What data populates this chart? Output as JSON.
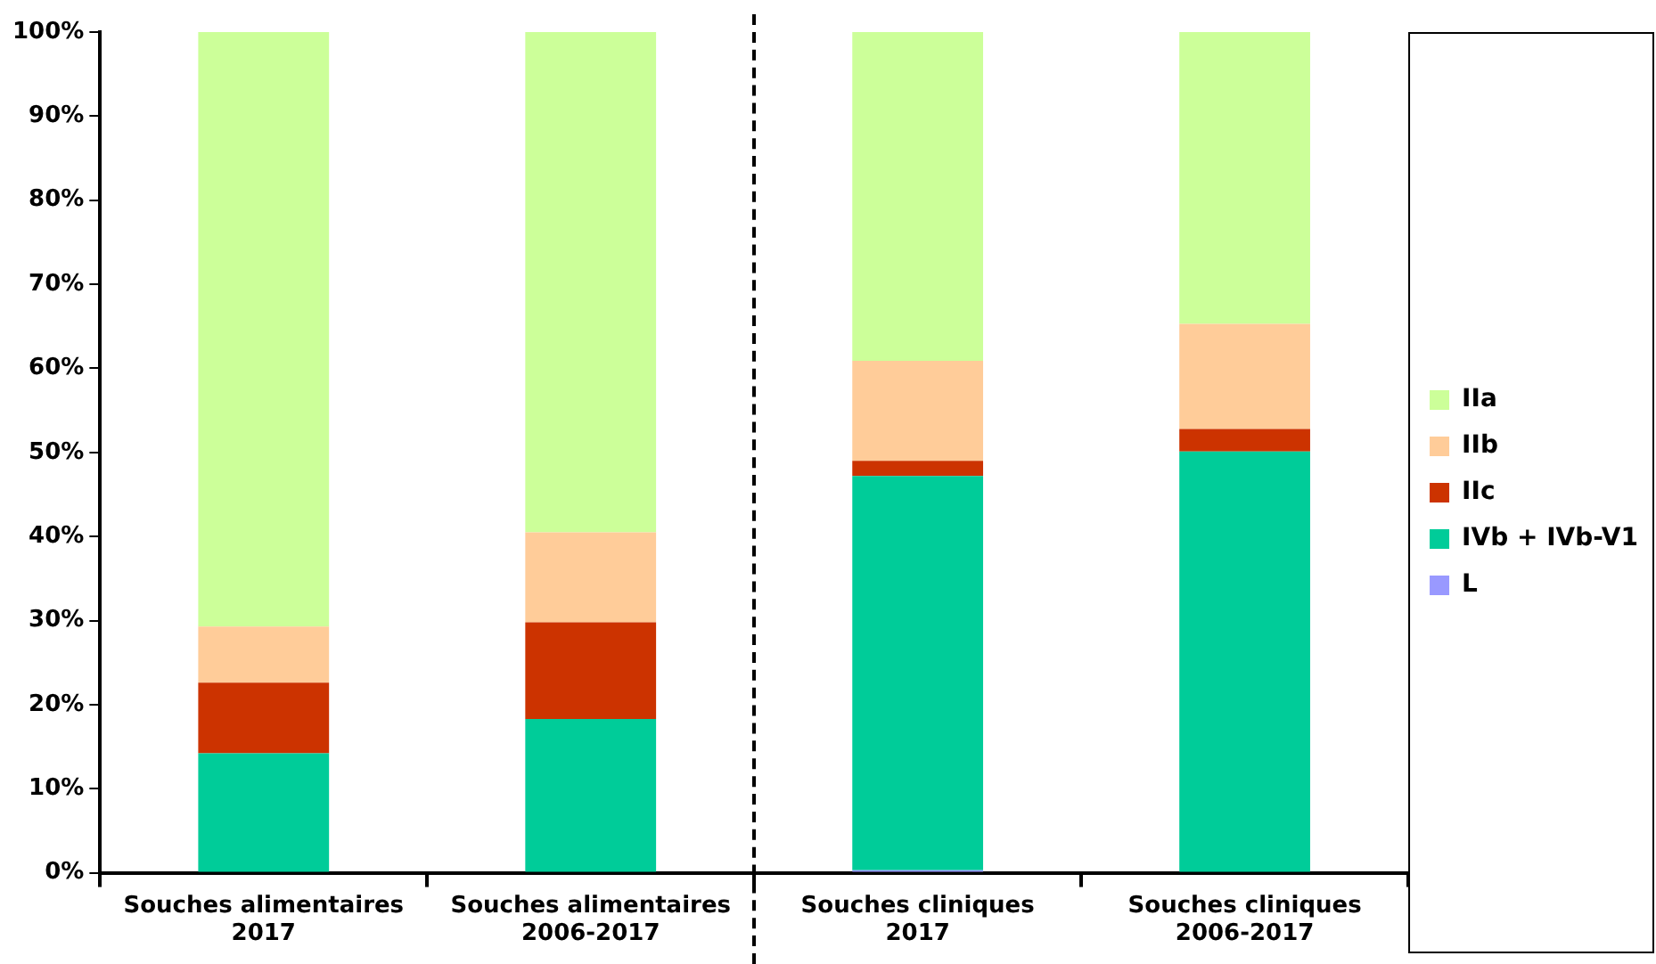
{
  "chart_data": {
    "type": "bar",
    "stacked": true,
    "categories": [
      "Souches alimentaires\n2017",
      "Souches alimentaires\n2006-2017",
      "Souches cliniques\n2017",
      "Souches cliniques\n2006-2017"
    ],
    "series": [
      {
        "name": "L",
        "color": "#9999ff",
        "values": [
          0,
          0,
          0.3,
          0
        ]
      },
      {
        "name": "IVb + IVb-V1",
        "color": "#00cc99",
        "values": [
          14.2,
          18.3,
          46.9,
          50.1
        ]
      },
      {
        "name": "IIc",
        "color": "#cc3300",
        "values": [
          8.4,
          11.5,
          1.8,
          2.7
        ]
      },
      {
        "name": "IIb",
        "color": "#ffcc99",
        "values": [
          6.7,
          10.7,
          11.9,
          12.5
        ]
      },
      {
        "name": "IIa",
        "color": "#ccff99",
        "values": [
          70.7,
          59.5,
          39.1,
          34.7
        ]
      }
    ],
    "ylim": [
      0,
      100
    ],
    "yticks": [
      {
        "value": 0,
        "label": "0%"
      },
      {
        "value": 10,
        "label": "10%"
      },
      {
        "value": 20,
        "label": "20%"
      },
      {
        "value": 30,
        "label": "30%"
      },
      {
        "value": 40,
        "label": "40%"
      },
      {
        "value": 50,
        "label": "50%"
      },
      {
        "value": 60,
        "label": "60%"
      },
      {
        "value": 70,
        "label": "70%"
      },
      {
        "value": 80,
        "label": "80%"
      },
      {
        "value": 90,
        "label": "90%"
      },
      {
        "value": 100,
        "label": "100%"
      }
    ],
    "grid": false,
    "legend": "right"
  }
}
